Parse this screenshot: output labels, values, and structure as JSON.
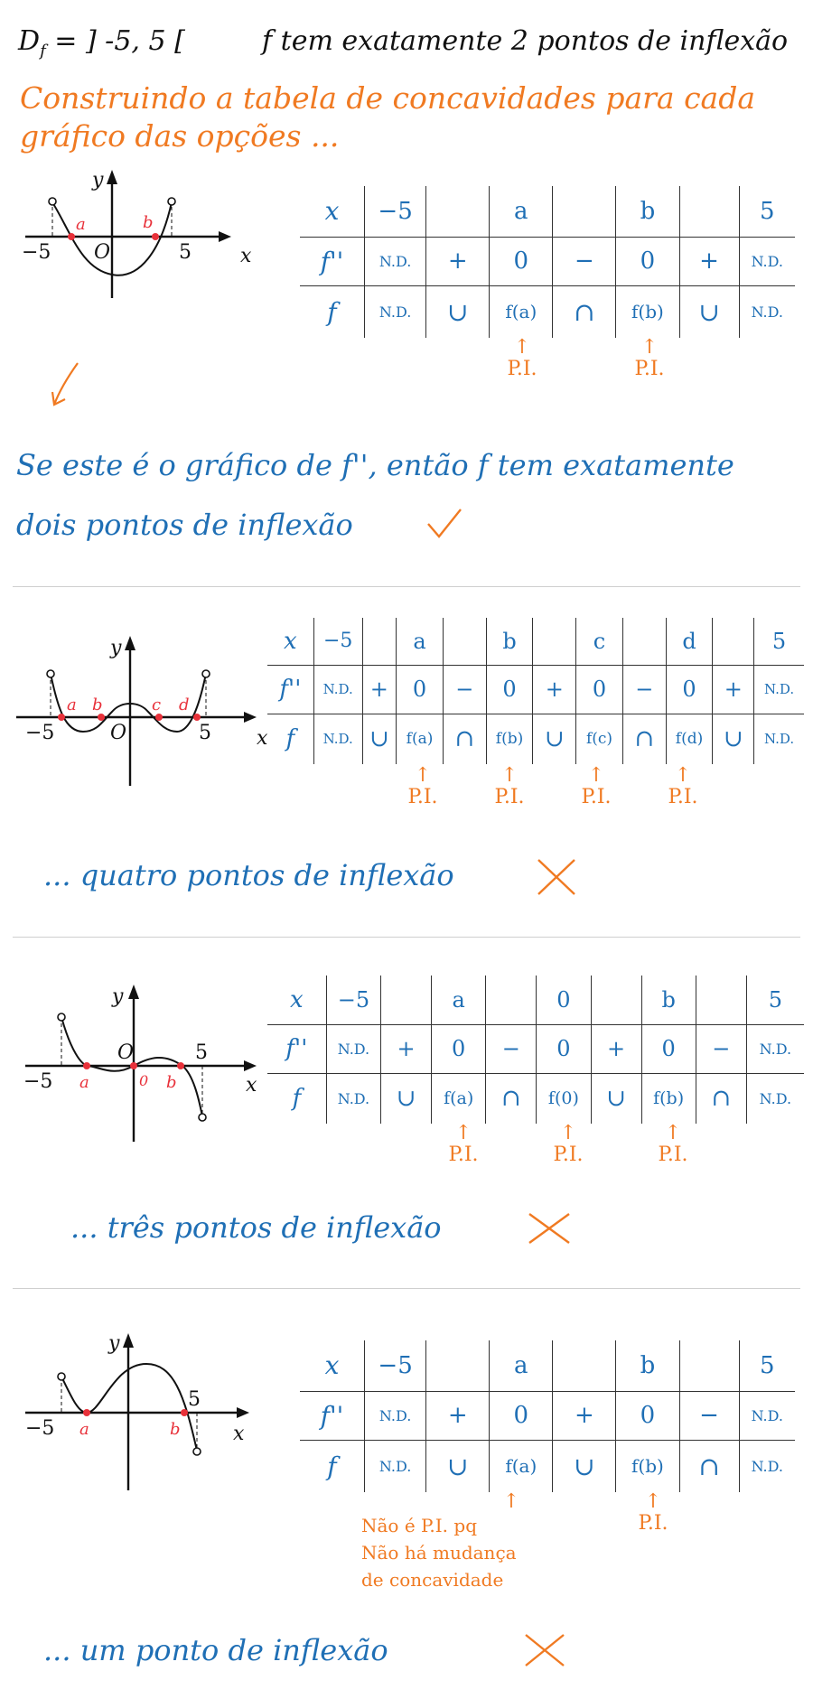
{
  "header": {
    "domain_text": "D",
    "domain_sub": "f",
    "domain_rest": " = ] -5, 5 [",
    "statement": "f tem exatamente 2 pontos de inflexão"
  },
  "intro": {
    "line1": "Construindo a tabela de concavidades para cada",
    "line2": "gráfico das opções ..."
  },
  "graph_labels": {
    "y": "y",
    "x": "x",
    "origin": "O",
    "origin_lower": "0",
    "neg5": "−5",
    "pos5": "5",
    "a": "a",
    "b": "b",
    "c": "c",
    "d": "d"
  },
  "table_labels": {
    "x_label": "x",
    "f2_label": "f''",
    "f_label": "f",
    "nd": "N.D.",
    "minus5": "−5",
    "five": "5",
    "plus": "+",
    "minus": "−",
    "zero": "0",
    "cup": "∪",
    "cap": "∩",
    "pi": "P.I."
  },
  "option1": {
    "points": [
      "a",
      "b"
    ],
    "f2_signs": [
      "+",
      "0",
      "−",
      "0",
      "+"
    ],
    "f_values": [
      "∪",
      "f(a)",
      "∩",
      "f(b)",
      "∪"
    ],
    "conclusion_line1": "Se este é o gráfico de f'', então f tem exatamente",
    "conclusion_line2": "dois pontos de inflexão"
  },
  "option2": {
    "points": [
      "a",
      "b",
      "c",
      "d"
    ],
    "f2_signs": [
      "+",
      "0",
      "−",
      "0",
      "+",
      "0",
      "−",
      "0",
      "+"
    ],
    "f_values": [
      "∪",
      "f(a)",
      "∩",
      "f(b)",
      "∪",
      "f(c)",
      "∩",
      "f(d)",
      "∪"
    ],
    "conclusion": "... quatro pontos de inflexão"
  },
  "option3": {
    "points": [
      "a",
      "0",
      "b"
    ],
    "f2_signs": [
      "+",
      "0",
      "−",
      "0",
      "+",
      "0",
      "−"
    ],
    "f_values": [
      "∪",
      "f(a)",
      "∩",
      "f(0)",
      "∪",
      "f(b)",
      "∩"
    ],
    "conclusion": "... três pontos de inflexão"
  },
  "option4": {
    "points": [
      "a",
      "b"
    ],
    "f2_signs": [
      "+",
      "0",
      "+",
      "0",
      "−"
    ],
    "f_values": [
      "∪",
      "f(a)",
      "∪",
      "f(b)",
      "∩"
    ],
    "note_line1": "Não é P.I. pq",
    "note_line2": "Não há mudança",
    "note_line3": "de concavidade",
    "conclusion": "... um ponto de inflexão"
  },
  "colors": {
    "blue": "#1f6fb5",
    "orange": "#f07a22",
    "red_point": "#e8313a",
    "ink": "#111111"
  }
}
